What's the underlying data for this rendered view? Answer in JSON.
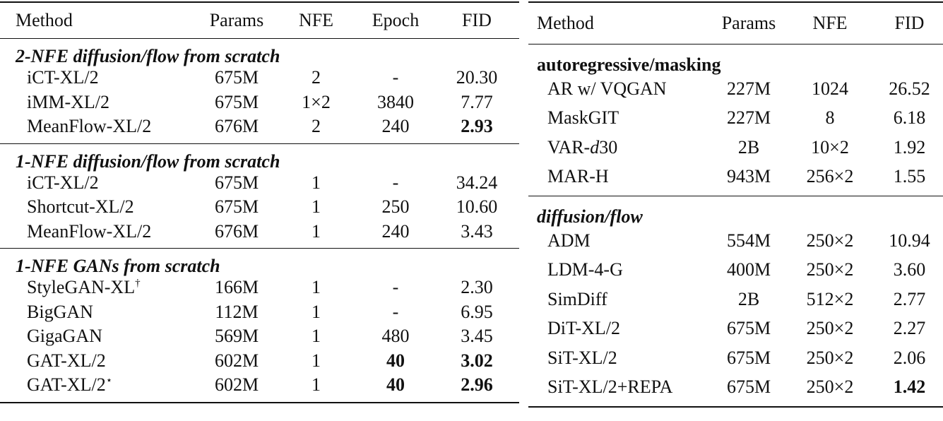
{
  "left": {
    "header": [
      "Method",
      "Params",
      "NFE",
      "Epoch",
      "FID"
    ],
    "groups": [
      {
        "title": "2-NFE diffusion/flow from scratch",
        "italic": true,
        "rows": [
          [
            "iCT-XL/2",
            "675M",
            "2",
            "-",
            "20.30"
          ],
          [
            "iMM-XL/2",
            "675M",
            "1×2",
            "3840",
            "7.77"
          ],
          [
            "MeanFlow-XL/2",
            "676M",
            "2",
            "240",
            {
              "parts": [
                {
                  "text": "2.93",
                  "style": "bold"
                }
              ]
            }
          ]
        ]
      },
      {
        "title": "1-NFE diffusion/flow from scratch",
        "italic": true,
        "rows": [
          [
            "iCT-XL/2",
            "675M",
            "1",
            "-",
            "34.24"
          ],
          [
            "Shortcut-XL/2",
            "675M",
            "1",
            "250",
            "10.60"
          ],
          [
            "MeanFlow-XL/2",
            "676M",
            "1",
            "240",
            "3.43"
          ]
        ]
      },
      {
        "title": "1-NFE GANs from scratch",
        "italic": true,
        "rows": [
          [
            {
              "parts": [
                {
                  "text": "StyleGAN-XL",
                  "style": "normal"
                },
                {
                  "text": "†",
                  "style": "sup"
                }
              ]
            },
            "166M",
            "1",
            "-",
            "2.30"
          ],
          [
            "BigGAN",
            "112M",
            "1",
            "-",
            "6.95"
          ],
          [
            "GigaGAN",
            "569M",
            "1",
            "480",
            "3.45"
          ],
          [
            "GAT-XL/2",
            "602M",
            "1",
            {
              "parts": [
                {
                  "text": "40",
                  "style": "bold"
                }
              ]
            },
            {
              "parts": [
                {
                  "text": "3.02",
                  "style": "bold"
                }
              ]
            }
          ],
          [
            {
              "parts": [
                {
                  "text": "GAT-XL/2",
                  "style": "normal"
                },
                {
                  "text": "⋆",
                  "style": "sup"
                }
              ]
            },
            "602M",
            "1",
            {
              "parts": [
                {
                  "text": "40",
                  "style": "bold"
                }
              ]
            },
            {
              "parts": [
                {
                  "text": "2.96",
                  "style": "bold"
                }
              ]
            }
          ]
        ]
      }
    ]
  },
  "right": {
    "header": [
      "Method",
      "Params",
      "NFE",
      "FID"
    ],
    "groups": [
      {
        "title": "autoregressive/masking",
        "italic": false,
        "rows": [
          [
            "AR w/ VQGAN",
            "227M",
            "1024",
            "26.52"
          ],
          [
            "MaskGIT",
            "227M",
            "8",
            "6.18"
          ],
          [
            {
              "parts": [
                {
                  "text": "VAR-",
                  "style": "normal"
                },
                {
                  "text": "d",
                  "style": "italic"
                },
                {
                  "text": "30",
                  "style": "normal"
                }
              ]
            },
            "2B",
            "10×2",
            "1.92"
          ],
          [
            "MAR-H",
            "943M",
            "256×2",
            "1.55"
          ]
        ]
      },
      {
        "title": "diffusion/flow",
        "italic": true,
        "rows": [
          [
            "ADM",
            "554M",
            "250×2",
            "10.94"
          ],
          [
            "LDM-4-G",
            "400M",
            "250×2",
            "3.60"
          ],
          [
            "SimDiff",
            "2B",
            "512×2",
            "2.77"
          ],
          [
            "DiT-XL/2",
            "675M",
            "250×2",
            "2.27"
          ],
          [
            "SiT-XL/2",
            "675M",
            "250×2",
            "2.06"
          ],
          [
            "SiT-XL/2+REPA",
            "675M",
            "250×2",
            {
              "parts": [
                {
                  "text": "1.42",
                  "style": "bold"
                }
              ]
            }
          ]
        ]
      }
    ]
  }
}
